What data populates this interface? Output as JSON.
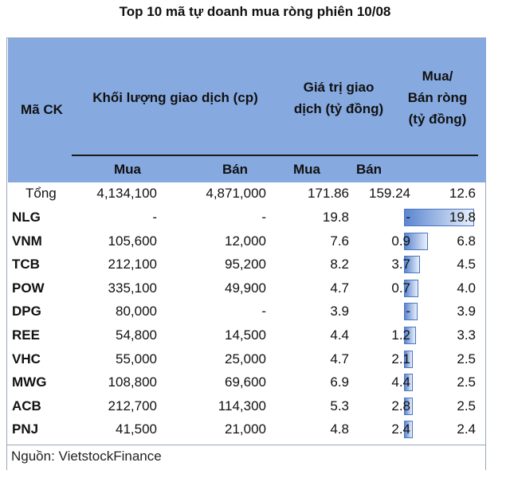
{
  "title": "Top 10 mã tự doanh mua ròng phiên 10/08",
  "header": {
    "col_ticker": "Mã CK",
    "col_volume": "Khối lượng giao dịch (cp)",
    "col_value_line1": "Giá trị giao",
    "col_value_line2": "dịch (tỷ đồng)",
    "col_net_line1": "Mua/",
    "col_net_line2": "Bán ròng",
    "col_net_line3": "(tỷ đồng)",
    "sub_buy_vol": "Mua",
    "sub_sell_vol": "Bán",
    "sub_buy_val": "Mua",
    "sub_sell_val": "Bán"
  },
  "total": {
    "label": "Tổng",
    "buy_vol": "4,134,100",
    "sell_vol": "4,871,000",
    "buy_val": "171.86",
    "sell_val": "159.24",
    "net": "12.6"
  },
  "rows": [
    {
      "ticker": "NLG",
      "buy_vol": "-",
      "sell_vol": "-",
      "buy_val": "19.8",
      "sell_val": "-",
      "net": "19.8",
      "net_value": 19.8
    },
    {
      "ticker": "VNM",
      "buy_vol": "105,600",
      "sell_vol": "12,000",
      "buy_val": "7.6",
      "sell_val": "0.9",
      "net": "6.8",
      "net_value": 6.8
    },
    {
      "ticker": "TCB",
      "buy_vol": "212,100",
      "sell_vol": "95,200",
      "buy_val": "8.2",
      "sell_val": "3.7",
      "net": "4.5",
      "net_value": 4.5
    },
    {
      "ticker": "POW",
      "buy_vol": "335,100",
      "sell_vol": "49,900",
      "buy_val": "4.7",
      "sell_val": "0.7",
      "net": "4.0",
      "net_value": 4.0
    },
    {
      "ticker": "DPG",
      "buy_vol": "80,000",
      "sell_vol": "-",
      "buy_val": "3.9",
      "sell_val": "-",
      "net": "3.9",
      "net_value": 3.9
    },
    {
      "ticker": "REE",
      "buy_vol": "54,800",
      "sell_vol": "14,500",
      "buy_val": "4.4",
      "sell_val": "1.2",
      "net": "3.3",
      "net_value": 3.3
    },
    {
      "ticker": "VHC",
      "buy_vol": "55,000",
      "sell_vol": "25,000",
      "buy_val": "4.7",
      "sell_val": "2.1",
      "net": "2.5",
      "net_value": 2.5
    },
    {
      "ticker": "MWG",
      "buy_vol": "108,800",
      "sell_vol": "69,600",
      "buy_val": "6.9",
      "sell_val": "4.4",
      "net": "2.5",
      "net_value": 2.5
    },
    {
      "ticker": "ACB",
      "buy_vol": "212,700",
      "sell_vol": "114,300",
      "buy_val": "5.3",
      "sell_val": "2.8",
      "net": "2.5",
      "net_value": 2.5
    },
    {
      "ticker": "PNJ",
      "buy_vol": "41,500",
      "sell_vol": "21,000",
      "buy_val": "4.8",
      "sell_val": "2.4",
      "net": "2.4",
      "net_value": 2.4
    }
  ],
  "source": "Nguồn: VietstockFinance",
  "colors": {
    "header_bg": "#86a9e0",
    "bar_fill": "#5b86d0",
    "bar_border": "#4a76c2"
  }
}
